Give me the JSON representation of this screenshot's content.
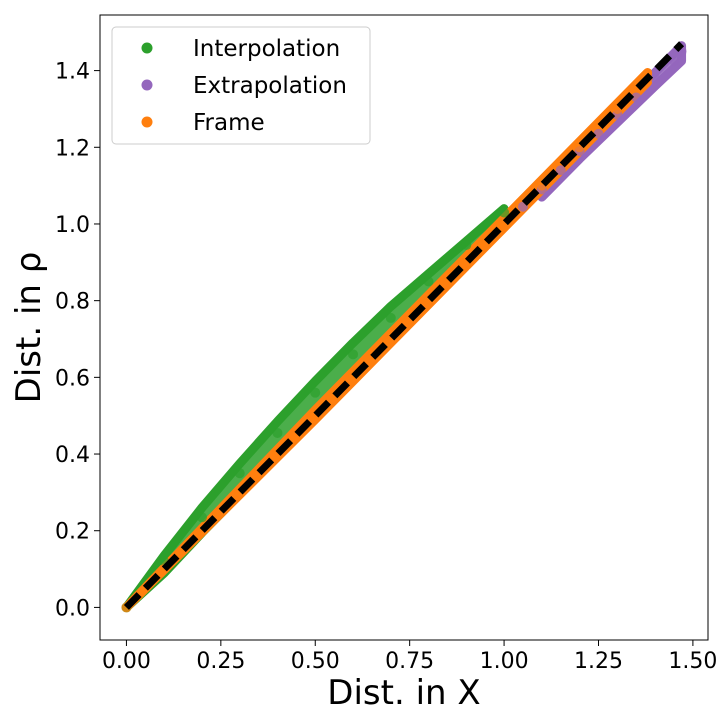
{
  "chart_data": {
    "type": "scatter",
    "xlabel": "Dist. in X",
    "ylabel": "Dist. in ρ",
    "xlim": [
      -0.07,
      1.54
    ],
    "ylim": [
      -0.085,
      1.545
    ],
    "xticks": [
      "0.00",
      "0.25",
      "0.50",
      "0.75",
      "1.00",
      "1.25",
      "1.50"
    ],
    "xtick_values": [
      0,
      0.25,
      0.5,
      0.75,
      1.0,
      1.25,
      1.5
    ],
    "yticks": [
      "0.0",
      "0.2",
      "0.4",
      "0.6",
      "0.8",
      "1.0",
      "1.2",
      "1.4"
    ],
    "ytick_values": [
      0,
      0.2,
      0.4,
      0.6,
      0.8,
      1.0,
      1.2,
      1.4
    ],
    "grid": false,
    "legend_position": "top-left",
    "series": [
      {
        "name": "Interpolation",
        "color": "#2ca02c",
        "points": [
          [
            0,
            0
          ],
          [
            0.1,
            0.12
          ],
          [
            0.2,
            0.235
          ],
          [
            0.3,
            0.35
          ],
          [
            0.4,
            0.455
          ],
          [
            0.5,
            0.56
          ],
          [
            0.6,
            0.66
          ],
          [
            0.7,
            0.755
          ],
          [
            0.8,
            0.85
          ],
          [
            0.9,
            0.945
          ],
          [
            1.0,
            1.03
          ]
        ],
        "band": [
          [
            0,
            0,
            0
          ],
          [
            0.1,
            0.09,
            0.135
          ],
          [
            0.2,
            0.195,
            0.26
          ],
          [
            0.3,
            0.295,
            0.375
          ],
          [
            0.4,
            0.4,
            0.485
          ],
          [
            0.5,
            0.5,
            0.59
          ],
          [
            0.6,
            0.6,
            0.69
          ],
          [
            0.7,
            0.7,
            0.785
          ],
          [
            0.8,
            0.8,
            0.87
          ],
          [
            0.9,
            0.9,
            0.955
          ],
          [
            1.0,
            1.0,
            1.04
          ]
        ]
      },
      {
        "name": "Extrapolation",
        "color": "#9467bd",
        "points": [
          [
            1.05,
            1.045
          ],
          [
            1.1,
            1.09
          ],
          [
            1.15,
            1.14
          ],
          [
            1.2,
            1.19
          ],
          [
            1.25,
            1.235
          ],
          [
            1.3,
            1.285
          ],
          [
            1.35,
            1.33
          ],
          [
            1.4,
            1.38
          ],
          [
            1.45,
            1.425
          ],
          [
            1.47,
            1.45
          ]
        ],
        "band": [
          [
            1.1,
            1.07,
            1.1
          ],
          [
            1.2,
            1.17,
            1.2
          ],
          [
            1.3,
            1.265,
            1.3
          ],
          [
            1.4,
            1.36,
            1.395
          ],
          [
            1.47,
            1.425,
            1.465
          ]
        ]
      },
      {
        "name": "Frame",
        "color": "#ff7f0e",
        "points": [
          [
            0,
            0
          ],
          [
            0.1,
            0.1
          ],
          [
            0.2,
            0.2
          ],
          [
            0.3,
            0.3
          ],
          [
            0.4,
            0.4
          ],
          [
            0.5,
            0.5
          ],
          [
            0.6,
            0.6
          ],
          [
            0.7,
            0.7
          ],
          [
            0.8,
            0.8
          ],
          [
            0.9,
            0.9
          ],
          [
            1.0,
            1.0
          ],
          [
            1.1,
            1.1
          ],
          [
            1.2,
            1.2
          ],
          [
            1.3,
            1.3
          ],
          [
            1.38,
            1.38
          ]
        ],
        "band": [
          [
            0,
            0,
            0
          ],
          [
            0.5,
            0.49,
            0.515
          ],
          [
            1.0,
            0.99,
            1.015
          ],
          [
            1.38,
            1.37,
            1.395
          ]
        ]
      }
    ],
    "reference_line": {
      "style": "dashed",
      "color": "#000000",
      "x": [
        0,
        1.47
      ],
      "y": [
        0,
        1.47
      ]
    }
  }
}
